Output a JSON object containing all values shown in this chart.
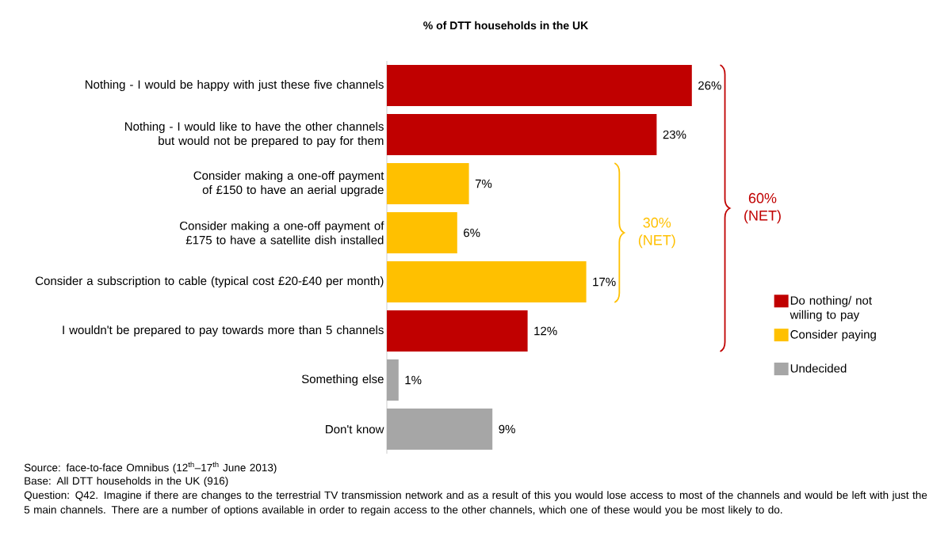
{
  "chart_data": {
    "type": "bar",
    "orientation": "horizontal",
    "title": "% of DTT households in the UK",
    "categories": [
      "Nothing - I would be happy with just these five channels",
      "Nothing - I would like to have the other channels but would not be prepared to pay for them",
      "Consider making a one-off payment of £150 to have an aerial upgrade",
      "Consider making a one-off payment of £175 to have a satellite dish installed",
      "Consider a subscription to cable (typical cost £20-£40 per month)",
      "I wouldn't be prepared to pay towards more than 5 channels",
      "Something else",
      "Don't know"
    ],
    "series": [
      {
        "name": "Do nothing/ not willing to pay",
        "color": "#c00000",
        "values": [
          26,
          23,
          null,
          null,
          null,
          12,
          null,
          null
        ],
        "value_labels": [
          "26%",
          "23%",
          null,
          null,
          null,
          "12%",
          null,
          null
        ]
      },
      {
        "name": "Consider paying",
        "color": "#ffc000",
        "values": [
          null,
          null,
          7,
          6,
          17,
          null,
          null,
          null
        ],
        "value_labels": [
          null,
          null,
          "7%",
          "6%",
          "17%",
          null,
          null,
          null
        ]
      },
      {
        "name": "Undecided",
        "color": "#a6a6a6",
        "values": [
          null,
          null,
          null,
          null,
          null,
          null,
          1,
          9
        ],
        "value_labels": [
          null,
          null,
          null,
          null,
          null,
          null,
          "1%",
          "9%"
        ]
      }
    ],
    "legend": "right",
    "annotations": [
      "60% (NET)",
      "30% (NET)",
      "Source: face-to-face Omnibus (12$^{th}$–17$^{th}$ June 2013)",
      "Base: All DTT households in the UK (916)",
      "Question: Q42. Imagine if there are changes to the terrestrial TV transmission network and as a result of this you would lose access to most of the channels and would be left with just the 5 main channels. There are a number of options available in order to regain access to the other channels, which one of these would you be most likely to do."
    ]
  }
}
